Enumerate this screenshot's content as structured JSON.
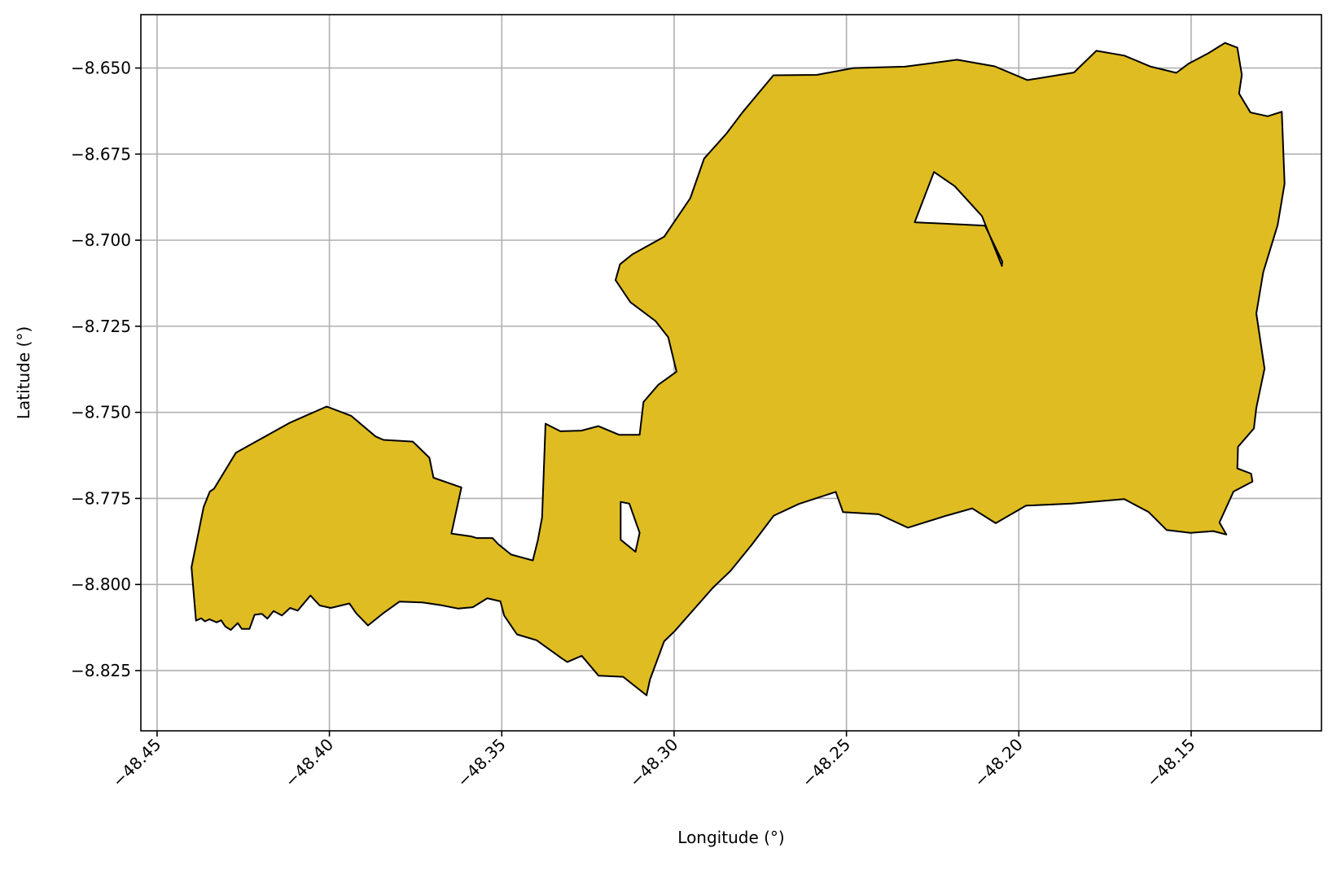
{
  "chart_data": {
    "type": "map",
    "title": "",
    "xlabel": "Longitude (°)",
    "ylabel": "Latitude (°)",
    "xlim": [
      -48.4547,
      -48.1122
    ],
    "ylim": [
      -8.8425,
      -8.6345
    ],
    "xticks": [
      -48.45,
      -48.4,
      -48.35,
      -48.3,
      -48.25,
      -48.2,
      -48.15
    ],
    "xtick_labels": [
      "−48.45",
      "−48.40",
      "−48.35",
      "−48.30",
      "−48.25",
      "−48.20",
      "−48.15"
    ],
    "yticks": [
      -8.65,
      -8.675,
      -8.7,
      -8.725,
      -8.75,
      -8.775,
      -8.8,
      -8.825
    ],
    "ytick_labels": [
      "−8.650",
      "−8.675",
      "−8.700",
      "−8.725",
      "−8.750",
      "−8.775",
      "−8.800",
      "−8.825"
    ],
    "grid": true,
    "region": {
      "fill": "#dfbc21",
      "edge": "#000000",
      "outline": [
        [
          -48.4387,
          -8.8105
        ],
        [
          -48.4372,
          -8.8098
        ],
        [
          -48.4361,
          -8.8107
        ],
        [
          -48.4348,
          -8.8101
        ],
        [
          -48.4327,
          -8.811
        ],
        [
          -48.4314,
          -8.8104
        ],
        [
          -48.4302,
          -8.8122
        ],
        [
          -48.4286,
          -8.8132
        ],
        [
          -48.4266,
          -8.8112
        ],
        [
          -48.4254,
          -8.8129
        ],
        [
          -48.4232,
          -8.8129
        ],
        [
          -48.4217,
          -8.8088
        ],
        [
          -48.4196,
          -8.8085
        ],
        [
          -48.418,
          -8.8099
        ],
        [
          -48.4162,
          -8.8077
        ],
        [
          -48.4138,
          -8.809
        ],
        [
          -48.4114,
          -8.8068
        ],
        [
          -48.4092,
          -8.8076
        ],
        [
          -48.4055,
          -8.8032
        ],
        [
          -48.4028,
          -8.8061
        ],
        [
          -48.3996,
          -8.8068
        ],
        [
          -48.3942,
          -8.8055
        ],
        [
          -48.3922,
          -8.8084
        ],
        [
          -48.3888,
          -8.8119
        ],
        [
          -48.3842,
          -8.8082
        ],
        [
          -48.3797,
          -8.805
        ],
        [
          -48.373,
          -8.8052
        ],
        [
          -48.3676,
          -8.806
        ],
        [
          -48.3626,
          -8.807
        ],
        [
          -48.3584,
          -8.8066
        ],
        [
          -48.3542,
          -8.804
        ],
        [
          -48.3504,
          -8.8049
        ],
        [
          -48.3493,
          -8.809
        ],
        [
          -48.3456,
          -8.8145
        ],
        [
          -48.3399,
          -8.8162
        ],
        [
          -48.3325,
          -8.8215
        ],
        [
          -48.331,
          -8.8225
        ],
        [
          -48.3268,
          -8.8207
        ],
        [
          -48.3219,
          -8.8265
        ],
        [
          -48.3148,
          -8.8268
        ],
        [
          -48.308,
          -8.8322
        ],
        [
          -48.307,
          -8.8276
        ],
        [
          -48.3029,
          -8.8165
        ],
        [
          -48.2998,
          -8.8135
        ],
        [
          -48.2888,
          -8.801
        ],
        [
          -48.2836,
          -8.796
        ],
        [
          -48.2775,
          -8.7885
        ],
        [
          -48.2711,
          -8.78
        ],
        [
          -48.2638,
          -8.7766
        ],
        [
          -48.2531,
          -8.7731
        ],
        [
          -48.251,
          -8.779
        ],
        [
          -48.2406,
          -8.7796
        ],
        [
          -48.2322,
          -8.7835
        ],
        [
          -48.221,
          -8.78
        ],
        [
          -48.2135,
          -8.7779
        ],
        [
          -48.2067,
          -8.7822
        ],
        [
          -48.1979,
          -8.7771
        ],
        [
          -48.1846,
          -8.7765
        ],
        [
          -48.1694,
          -8.7752
        ],
        [
          -48.1623,
          -8.779
        ],
        [
          -48.1571,
          -8.7842
        ],
        [
          -48.1502,
          -8.785
        ],
        [
          -48.1436,
          -8.7845
        ],
        [
          -48.1398,
          -8.7855
        ],
        [
          -48.1418,
          -8.782
        ],
        [
          -48.1377,
          -8.773
        ],
        [
          -48.1322,
          -8.7701
        ],
        [
          -48.1326,
          -8.7678
        ],
        [
          -48.1366,
          -8.7663
        ],
        [
          -48.1364,
          -8.76
        ],
        [
          -48.1318,
          -8.7547
        ],
        [
          -48.1311,
          -8.7487
        ],
        [
          -48.13,
          -8.7435
        ],
        [
          -48.1287,
          -8.7373
        ],
        [
          -48.1311,
          -8.7213
        ],
        [
          -48.1291,
          -8.7093
        ],
        [
          -48.1249,
          -8.6956
        ],
        [
          -48.1229,
          -8.6836
        ],
        [
          -48.1237,
          -8.6627
        ],
        [
          -48.1278,
          -8.664
        ],
        [
          -48.1328,
          -8.6629
        ],
        [
          -48.1361,
          -8.6574
        ],
        [
          -48.1353,
          -8.652
        ],
        [
          -48.1366,
          -8.6441
        ],
        [
          -48.1402,
          -8.6427
        ],
        [
          -48.145,
          -8.6457
        ],
        [
          -48.1507,
          -8.6487
        ],
        [
          -48.1543,
          -8.6514
        ],
        [
          -48.1617,
          -8.6496
        ],
        [
          -48.1694,
          -8.6464
        ],
        [
          -48.1775,
          -8.645
        ],
        [
          -48.184,
          -8.6513
        ],
        [
          -48.1975,
          -8.6535
        ],
        [
          -48.207,
          -8.6495
        ],
        [
          -48.2179,
          -8.6476
        ],
        [
          -48.233,
          -8.6496
        ],
        [
          -48.248,
          -8.65
        ],
        [
          -48.2586,
          -8.652
        ],
        [
          -48.2712,
          -8.6521
        ],
        [
          -48.2801,
          -8.6628
        ],
        [
          -48.2848,
          -8.669
        ],
        [
          -48.2913,
          -8.6763
        ],
        [
          -48.2953,
          -8.6878
        ],
        [
          -48.3029,
          -8.699
        ],
        [
          -48.3121,
          -8.7041
        ],
        [
          -48.3157,
          -8.707
        ],
        [
          -48.317,
          -8.7116
        ],
        [
          -48.3127,
          -8.718
        ],
        [
          -48.3054,
          -8.7235
        ],
        [
          -48.3017,
          -8.7282
        ],
        [
          -48.2993,
          -8.7382
        ],
        [
          -48.3046,
          -8.742
        ],
        [
          -48.3089,
          -8.747
        ],
        [
          -48.31,
          -8.7565
        ],
        [
          -48.316,
          -8.7565
        ],
        [
          -48.322,
          -8.754
        ],
        [
          -48.3269,
          -8.7553
        ],
        [
          -48.333,
          -8.7555
        ],
        [
          -48.3373,
          -8.7533
        ],
        [
          -48.3383,
          -8.7805
        ],
        [
          -48.3395,
          -8.787
        ],
        [
          -48.341,
          -8.793
        ],
        [
          -48.3473,
          -8.7913
        ],
        [
          -48.351,
          -8.7883
        ],
        [
          -48.3527,
          -8.7865
        ],
        [
          -48.3573,
          -8.7865
        ],
        [
          -48.359,
          -8.786
        ],
        [
          -48.3646,
          -8.7852
        ],
        [
          -48.3617,
          -8.7718
        ],
        [
          -48.3698,
          -8.769
        ],
        [
          -48.371,
          -8.7632
        ],
        [
          -48.3758,
          -8.7585
        ],
        [
          -48.3843,
          -8.758
        ],
        [
          -48.3866,
          -8.757
        ],
        [
          -48.3937,
          -8.751
        ],
        [
          -48.4008,
          -8.7483
        ],
        [
          -48.4114,
          -8.753
        ],
        [
          -48.4271,
          -8.7617
        ],
        [
          -48.4335,
          -8.7722
        ],
        [
          -48.4347,
          -8.773
        ],
        [
          -48.4365,
          -8.7775
        ],
        [
          -48.44,
          -8.795
        ],
        [
          -48.4387,
          -8.8105
        ]
      ],
      "holes": [
        [
          [
            -48.2302,
            -8.6948
          ],
          [
            -48.2246,
            -8.6802
          ],
          [
            -48.2186,
            -8.6843
          ],
          [
            -48.2107,
            -8.693
          ],
          [
            -48.2049,
            -8.7075
          ],
          [
            -48.2048,
            -8.7062
          ],
          [
            -48.2098,
            -8.6958
          ],
          [
            -48.2152,
            -8.6955
          ],
          [
            -48.2302,
            -8.6948
          ]
        ],
        [
          [
            -48.313,
            -8.7765
          ],
          [
            -48.31,
            -8.785
          ],
          [
            -48.3112,
            -8.7905
          ],
          [
            -48.3155,
            -8.787
          ],
          [
            -48.3155,
            -8.776
          ],
          [
            -48.313,
            -8.7765
          ]
        ]
      ]
    }
  }
}
